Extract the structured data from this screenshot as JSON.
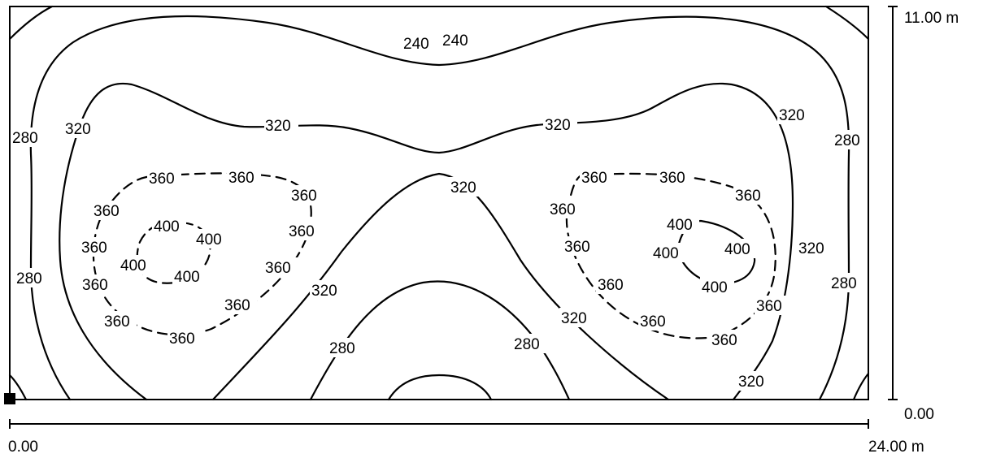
{
  "room": {
    "width_label": "24.00 m",
    "height_label": "11.00 m",
    "origin_x_label": "0.00",
    "origin_y_label": "0.00"
  },
  "contours": {
    "levels": [
      "240",
      "280",
      "320",
      "360",
      "400"
    ],
    "labels": {
      "l240a": "240",
      "l240b": "240",
      "l280_left_top": "280",
      "l280_left_bottom": "280",
      "l280_right_top": "280",
      "l280_right_bottom": "280",
      "l280_center_left": "280",
      "l280_center_right": "280",
      "l320_top_left": "320",
      "l320_top_mid": "320",
      "l320_top_right": "320",
      "l320_left": "320",
      "l320_right_edge": "320",
      "l320_center": "320",
      "l320_center_left": "320",
      "l320_center_right": "320",
      "l320_bottom_right": "320",
      "l360_a": "360",
      "l360_b": "360",
      "l360_c": "360",
      "l360_d": "360",
      "l360_e": "360",
      "l360_f": "360",
      "l360_g": "360",
      "l360_h": "360",
      "l360_i": "360",
      "l360_j": "360",
      "l360_k": "360",
      "r360_a": "360",
      "r360_b": "360",
      "r360_c": "360",
      "r360_d": "360",
      "r360_e": "360",
      "r360_f": "360",
      "r360_g": "360",
      "r360_h": "360",
      "r360_i": "360",
      "l400_a": "400",
      "l400_b": "400",
      "l400_c": "400",
      "l400_d": "400",
      "r400_a": "400",
      "r400_b": "400",
      "r400_c": "400",
      "r400_d": "400"
    }
  }
}
